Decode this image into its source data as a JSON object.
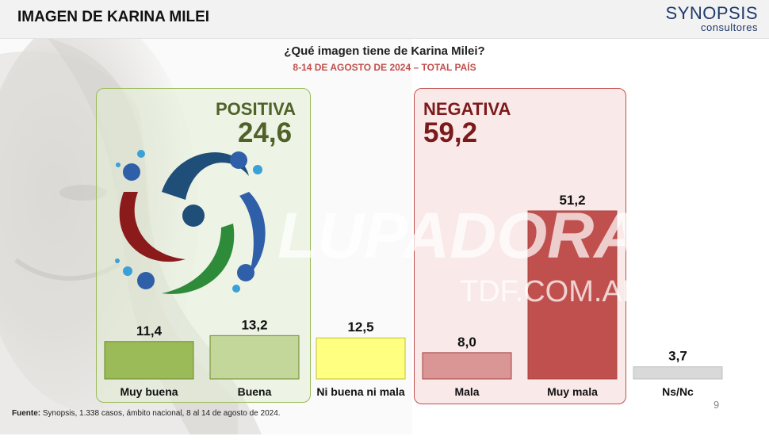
{
  "header": {
    "title": "IMAGEN DE KARINA MILEI",
    "brand_name": "SYNOPSIS",
    "brand_sub": "consultores"
  },
  "question": "¿Qué imagen tiene de Karina Milei?",
  "date_line": "8-14 DE AGOSTO DE 2024 – TOTAL PAÍS",
  "positive": {
    "label": "POSITIVA",
    "value": "24,6"
  },
  "negative": {
    "label": "NEGATIVA",
    "value": "59,2"
  },
  "watermark": {
    "line1": "LA LUPADORA",
    "line2": "TDF.COM.AR"
  },
  "footer": {
    "label": "Fuente:",
    "text": " Synopsis, 1.338 casos, ámbito nacional, 8 al 14 de agosto de 2024."
  },
  "page_number": "9",
  "colors": {
    "muy_buena": "#9bbb59",
    "buena": "#c4d79b",
    "ni_buena_ni_mala": "#ffff80",
    "mala": "#da9694",
    "muy_mala": "#c0504d",
    "ns_nc": "#d9d9d9"
  },
  "chart_data": {
    "type": "bar",
    "title": "¿Qué imagen tiene de Karina Milei?",
    "subtitle": "8-14 DE AGOSTO DE 2024 – TOTAL PAÍS",
    "categories": [
      "Muy buena",
      "Buena",
      "Ni buena ni mala",
      "Mala",
      "Muy mala",
      "Ns/Nc"
    ],
    "values": [
      11.4,
      13.2,
      12.5,
      8.0,
      51.2,
      3.7
    ],
    "value_labels": [
      "11,4",
      "13,2",
      "12,5",
      "8,0",
      "51,2",
      "3,7"
    ],
    "xlabel": "",
    "ylabel": "",
    "ylim": [
      0,
      51.2
    ],
    "grid": false
  }
}
